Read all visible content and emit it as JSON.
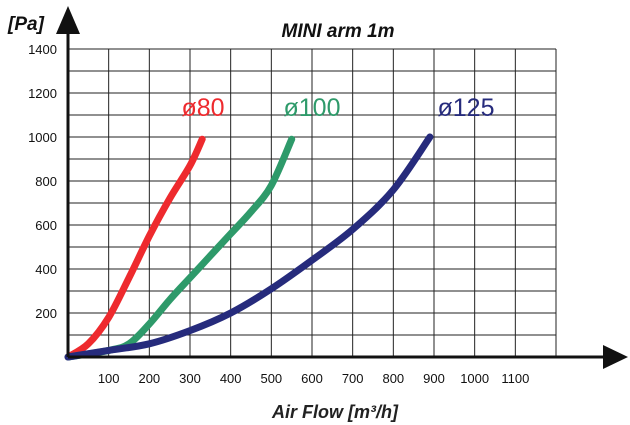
{
  "chart_data": {
    "type": "line",
    "title": "MINI arm 1m",
    "ylabel": "[Pa]",
    "xlabel": "Air Flow [m³/h]",
    "xlim": [
      0,
      1200
    ],
    "ylim": [
      0,
      1400
    ],
    "x_ticks": [
      100,
      200,
      300,
      400,
      500,
      600,
      700,
      800,
      900,
      1000,
      1100
    ],
    "y_ticks": [
      200,
      400,
      600,
      800,
      1000,
      1200,
      1400
    ],
    "grid": true,
    "series": [
      {
        "name": "ø80",
        "color": "#ee2a2e",
        "x": [
          0,
          50,
          100,
          150,
          200,
          250,
          300,
          330
        ],
        "y": [
          0,
          60,
          180,
          360,
          550,
          720,
          870,
          990
        ]
      },
      {
        "name": "ø100",
        "color": "#2e9a6a",
        "x": [
          0,
          100,
          150,
          200,
          250,
          300,
          350,
          400,
          450,
          500,
          550
        ],
        "y": [
          0,
          30,
          60,
          150,
          260,
          360,
          460,
          560,
          660,
          780,
          990
        ]
      },
      {
        "name": "ø125",
        "color": "#262b7c",
        "x": [
          0,
          100,
          200,
          300,
          400,
          500,
          600,
          700,
          800,
          890
        ],
        "y": [
          0,
          30,
          60,
          120,
          200,
          310,
          440,
          580,
          760,
          1000
        ]
      }
    ]
  }
}
